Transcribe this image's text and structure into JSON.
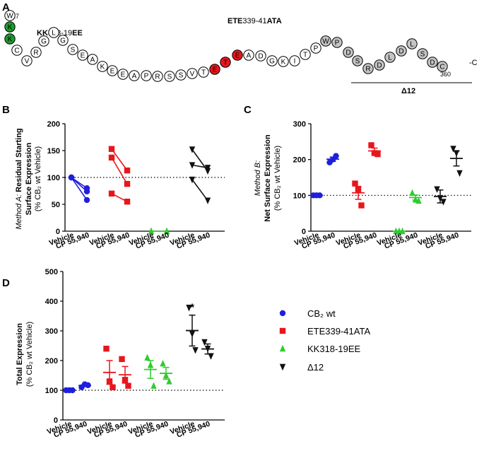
{
  "panels": {
    "a": {
      "letter": "A",
      "start_num": "317",
      "end_num": "360",
      "c_term": "-C",
      "kk_label": {
        "bold": "KK",
        "rest": "318-19",
        "bold2": "EE"
      },
      "ete_label": {
        "bold": "ETE",
        "rest": "339-41",
        "bold2": "ATA"
      },
      "delta_label": "Δ12",
      "residues": [
        "W",
        "K",
        "K",
        "C",
        "V",
        "R",
        "G",
        "L",
        "G",
        "S",
        "E",
        "A",
        "K",
        "E",
        "E",
        "A",
        "P",
        "R",
        "S",
        "S",
        "V",
        "T",
        "E",
        "T",
        "E",
        "A",
        "D",
        "G",
        "K",
        "I",
        "T",
        "P",
        "W",
        "P",
        "D",
        "S",
        "R",
        "D",
        "L",
        "D",
        "L",
        "S",
        "D",
        "C"
      ]
    },
    "b": {
      "letter": "B"
    },
    "c": {
      "letter": "C"
    },
    "d": {
      "letter": "D"
    }
  },
  "legend": [
    {
      "name": "CB₂ wt",
      "color": "#1f1fdc",
      "marker": "circle"
    },
    {
      "name": "ETE339-41ATA",
      "color": "#e8161c",
      "marker": "square"
    },
    {
      "name": "KK318-19EE",
      "color": "#2ecc2e",
      "marker": "triangle-up"
    },
    {
      "name": "Δ12",
      "color": "#111111",
      "marker": "triangle-down"
    }
  ],
  "chart_data": [
    {
      "panel": "B",
      "type": "scatter",
      "subtype": "paired-lines",
      "ylabel_italic": "Method A:",
      "ylabel_lines": [
        "Residual Starting",
        "Surface Expression",
        "(% CB₂ wt Vehicle)"
      ],
      "ylim": [
        0,
        200
      ],
      "yticks": [
        "0",
        "50",
        "100",
        "150",
        "200"
      ],
      "reference_line": 100,
      "categories": [
        "Vehicle",
        "CP 55,940",
        "Vehicle",
        "CP 55,940",
        "Vehicle",
        "CP 55,940",
        "Vehicle",
        "CP 55,940"
      ],
      "groups": [
        {
          "series": 0,
          "pairs": [
            [
              100,
              80
            ],
            [
              100,
              74
            ],
            [
              100,
              58
            ]
          ]
        },
        {
          "series": 1,
          "pairs": [
            [
              153,
              113
            ],
            [
              137,
              88
            ],
            [
              70,
              55
            ]
          ]
        },
        {
          "series": 2,
          "pairs": [
            [
              0,
              0
            ],
            [
              0,
              0
            ]
          ]
        },
        {
          "series": 3,
          "pairs": [
            [
              152,
              112
            ],
            [
              123,
              118
            ],
            [
              96,
              57
            ]
          ]
        }
      ]
    },
    {
      "panel": "C",
      "type": "scatter",
      "subtype": "dot-mean-sem",
      "ylabel_italic": "Method B:",
      "ylabel_lines": [
        "Net Surface Expression",
        "(% CB₂ wt Vehicle)"
      ],
      "ylim": [
        0,
        300
      ],
      "yticks": [
        "0",
        "100",
        "200",
        "300"
      ],
      "reference_line": 100,
      "categories": [
        "Vehicle",
        "CP 55,940",
        "Vehicle",
        "CP 55,940",
        "Vehicle",
        "CP 55,940",
        "Vehicle",
        "CP 55,940"
      ],
      "groups": [
        {
          "series": 0,
          "points": [
            100,
            100,
            100
          ],
          "mean": 100,
          "sem": 0
        },
        {
          "series": 0,
          "points": [
            192,
            200,
            210
          ],
          "mean": 201,
          "sem": 6
        },
        {
          "series": 1,
          "points": [
            133,
            117,
            72
          ],
          "mean": 107,
          "sem": 18
        },
        {
          "series": 1,
          "points": [
            240,
            218,
            215
          ],
          "mean": 224,
          "sem": 8
        },
        {
          "series": 2,
          "points": [
            0,
            0,
            0
          ],
          "mean": 0,
          "sem": 0
        },
        {
          "series": 2,
          "points": [
            107,
            88,
            85
          ],
          "mean": 94,
          "sem": 7
        },
        {
          "series": 3,
          "points": [
            117,
            92,
            82
          ],
          "mean": 97,
          "sem": 18
        },
        {
          "series": 3,
          "points": [
            230,
            218,
            162
          ],
          "mean": 203,
          "sem": 21
        }
      ]
    },
    {
      "panel": "D",
      "type": "scatter",
      "subtype": "dot-mean-sem",
      "ylabel_lines": [
        "Total Expression",
        "(% CB₂ wt Vehicle)"
      ],
      "ylim": [
        0,
        500
      ],
      "yticks": [
        "0",
        "100",
        "200",
        "300",
        "400",
        "500"
      ],
      "reference_line": 100,
      "annotation": {
        "text": "*",
        "group": 6
      },
      "categories": [
        "Vehicle",
        "CP 55,940",
        "Vehicle",
        "CP 55,940",
        "Vehicle",
        "CP 55,940",
        "Vehicle",
        "CP 55,940"
      ],
      "groups": [
        {
          "series": 0,
          "points": [
            100,
            100,
            100
          ],
          "mean": 100,
          "sem": 0
        },
        {
          "series": 0,
          "points": [
            110,
            120,
            117
          ],
          "mean": 116,
          "sem": 3
        },
        {
          "series": 1,
          "points": [
            240,
            130,
            110
          ],
          "mean": 160,
          "sem": 40
        },
        {
          "series": 1,
          "points": [
            205,
            135,
            115
          ],
          "mean": 152,
          "sem": 28
        },
        {
          "series": 2,
          "points": [
            210,
            185,
            115
          ],
          "mean": 170,
          "sem": 30
        },
        {
          "series": 2,
          "points": [
            190,
            150,
            130
          ],
          "mean": 157,
          "sem": 20
        },
        {
          "series": 3,
          "points": [
            378,
            290,
            235
          ],
          "mean": 301,
          "sem": 52
        },
        {
          "series": 3,
          "points": [
            262,
            240,
            215
          ],
          "mean": 239,
          "sem": 17
        }
      ]
    }
  ]
}
